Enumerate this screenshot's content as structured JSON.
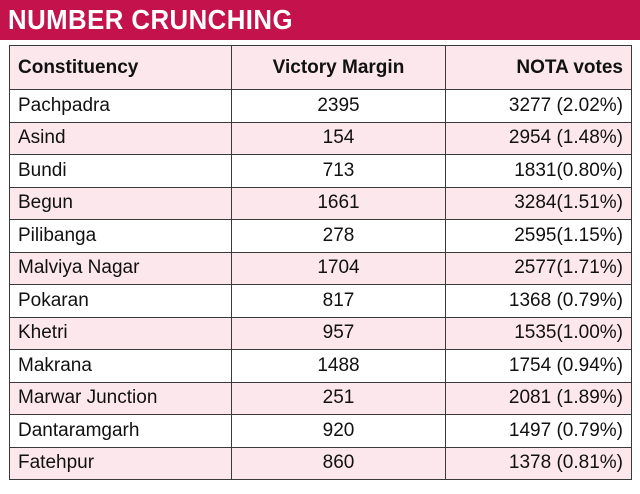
{
  "title": "NUMBER CRUNCHING",
  "colors": {
    "title_bar": "#c4124c",
    "row_shade": "#fbe7ec",
    "border": "#3a3a3a"
  },
  "table": {
    "headers": [
      "Constituency",
      "Victory Margin",
      "NOTA votes"
    ],
    "rows": [
      [
        "Pachpadra",
        "2395",
        "3277 (2.02%)"
      ],
      [
        "Asind",
        "154",
        "2954 (1.48%)"
      ],
      [
        "Bundi",
        "713",
        "1831(0.80%)"
      ],
      [
        "Begun",
        "1661",
        "3284(1.51%)"
      ],
      [
        "Pilibanga",
        "278",
        "2595(1.15%)"
      ],
      [
        "Malviya Nagar",
        "1704",
        "2577(1.71%)"
      ],
      [
        "Pokaran",
        "817",
        "1368 (0.79%)"
      ],
      [
        "Khetri",
        "957",
        "1535(1.00%)"
      ],
      [
        "Makrana",
        "1488",
        "1754 (0.94%)"
      ],
      [
        "Marwar Junction",
        "251",
        "2081 (1.89%)"
      ],
      [
        "Dantaramgarh",
        "920",
        "1497 (0.79%)"
      ],
      [
        "Fatehpur",
        "860",
        "1378 (0.81%)"
      ]
    ]
  }
}
